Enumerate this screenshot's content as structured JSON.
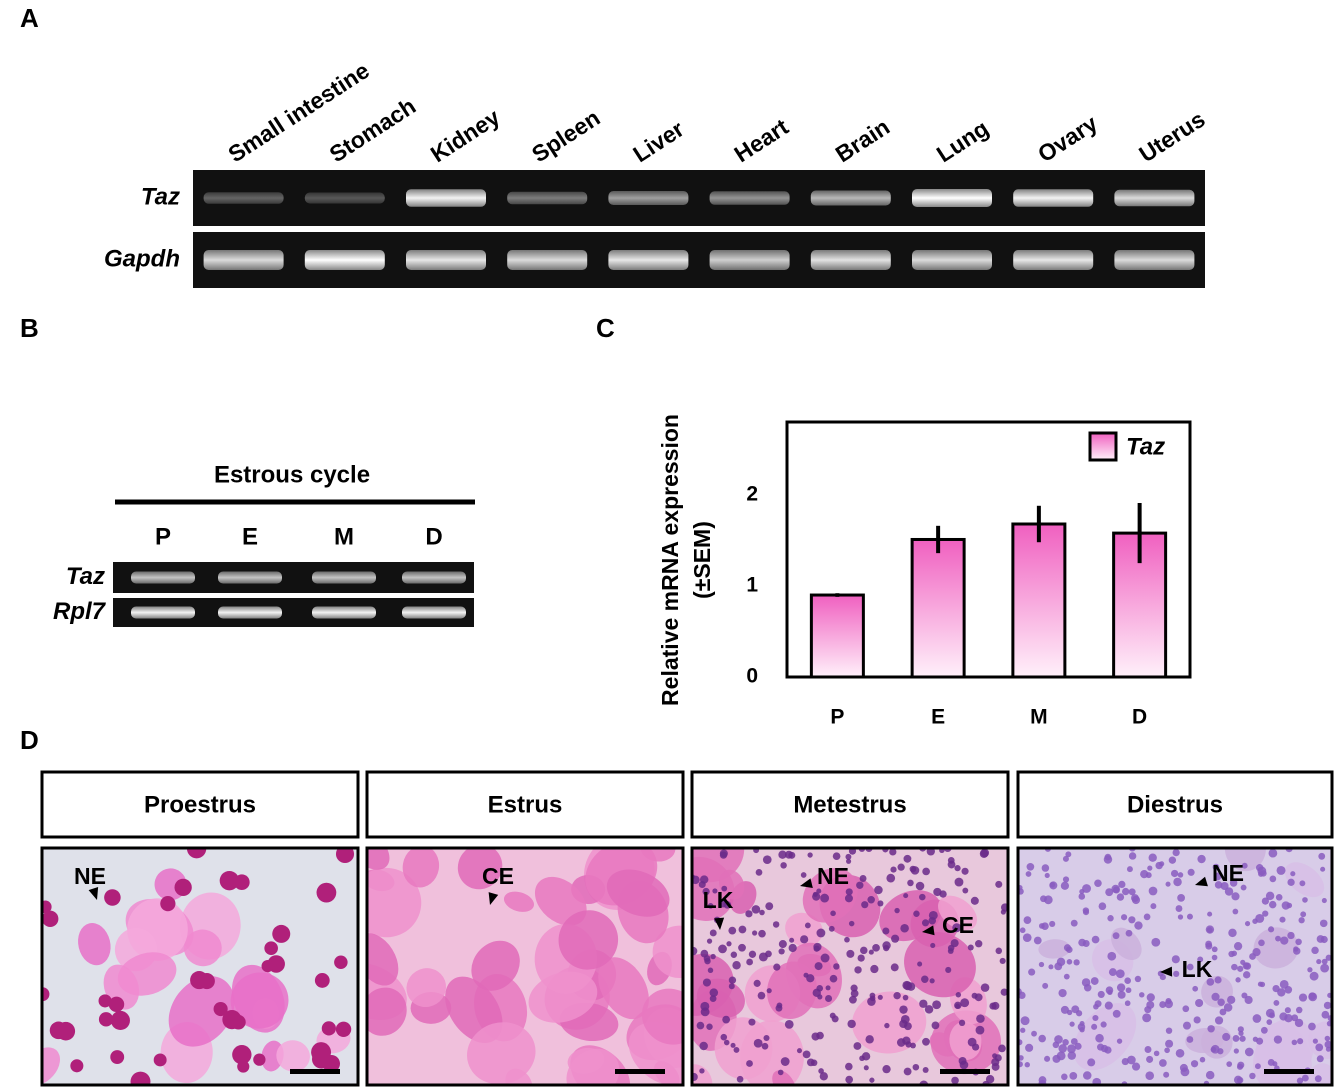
{
  "panel_labels": [
    "A",
    "B",
    "C",
    "D"
  ],
  "panel_a": {
    "tissues": [
      "Small intestine",
      "Stomach",
      "Kidney",
      "Spleen",
      "Liver",
      "Heart",
      "Brain",
      "Lung",
      "Ovary",
      "Uterus"
    ],
    "genes": [
      "Taz",
      "Gapdh"
    ]
  },
  "panel_b": {
    "title": "Estrous cycle",
    "stages": [
      "P",
      "E",
      "M",
      "D"
    ],
    "genes": [
      "Taz",
      "Rpl7"
    ]
  },
  "chart_data": {
    "type": "bar",
    "ylabel": [
      "Relative mRNA expression",
      "(±SEM)"
    ],
    "categories": [
      "P",
      "E",
      "M",
      "D"
    ],
    "series": [
      {
        "name": "Taz",
        "color": "#f060c0",
        "values": [
          0.9,
          1.51,
          1.68,
          1.58
        ],
        "errors": [
          0.02,
          0.15,
          0.2,
          0.33
        ]
      }
    ],
    "ylim": [
      0,
      2.8
    ],
    "yticks": [
      0,
      1,
      2
    ],
    "legend": "upper right"
  },
  "panel_d": {
    "stages": [
      "Proestrus",
      "Estrus",
      "Metestrus",
      "Diestrus"
    ],
    "annotations": [
      [
        "NE"
      ],
      [
        "CE"
      ],
      [
        "LK",
        "NE",
        "CE"
      ],
      [
        "NE",
        "LK"
      ]
    ]
  }
}
